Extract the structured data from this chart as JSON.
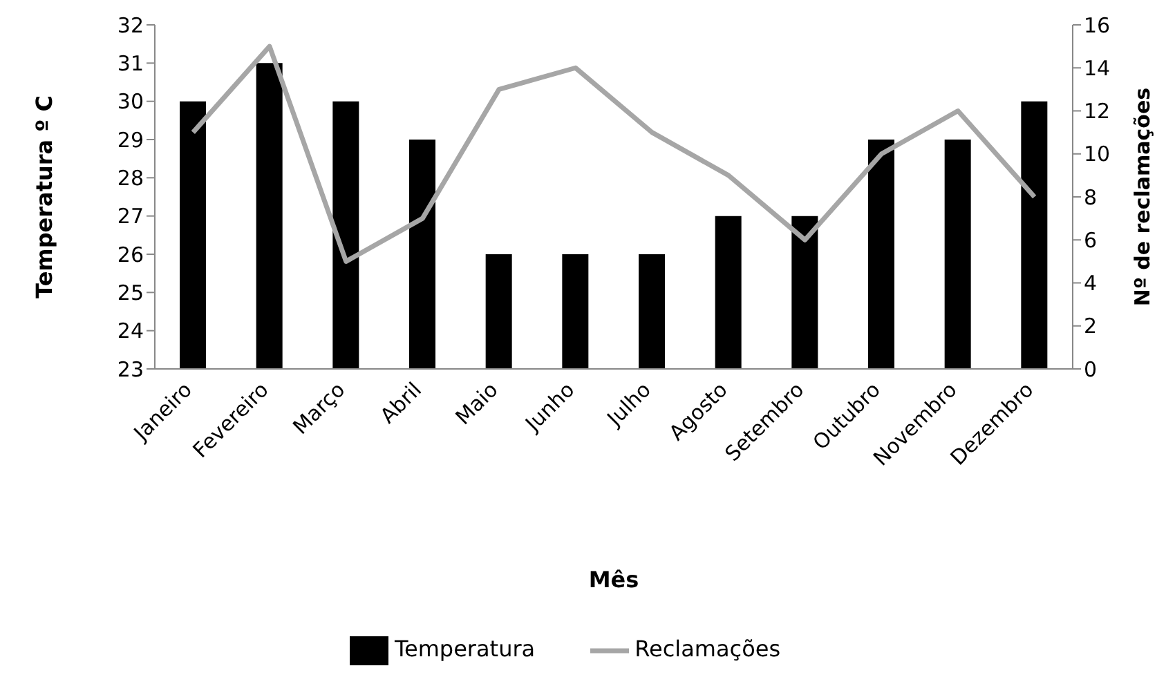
{
  "chart_data": {
    "type": "bar",
    "xlabel": "Mês",
    "ylabel": "Temperatura º C",
    "y2label": "Nº de reclamações",
    "categories": [
      "Janeiro",
      "Fevereiro",
      "Março",
      "Abril",
      "Maio",
      "Junho",
      "Julho",
      "Agosto",
      "Setembro",
      "Outubro",
      "Novembro",
      "Dezembro"
    ],
    "series": [
      {
        "name": "Temperatura",
        "color": "#000000",
        "values": [
          30,
          31,
          30,
          29,
          26,
          26,
          26,
          27,
          27,
          29,
          29,
          30
        ]
      },
      {
        "name": "Reclamações",
        "type": "line",
        "axis": "y2",
        "color": "#a6a6a6",
        "values": [
          11,
          15,
          5,
          7,
          13,
          14,
          11,
          9,
          6,
          10,
          12,
          8
        ]
      }
    ],
    "ylim": [
      23,
      32
    ],
    "yticks": [
      23,
      24,
      25,
      26,
      27,
      28,
      29,
      30,
      31,
      32
    ],
    "y2lim": [
      0,
      16
    ],
    "y2ticks": [
      0,
      2,
      4,
      6,
      8,
      10,
      12,
      14,
      16
    ],
    "legend": "bottom",
    "marker": "none"
  }
}
